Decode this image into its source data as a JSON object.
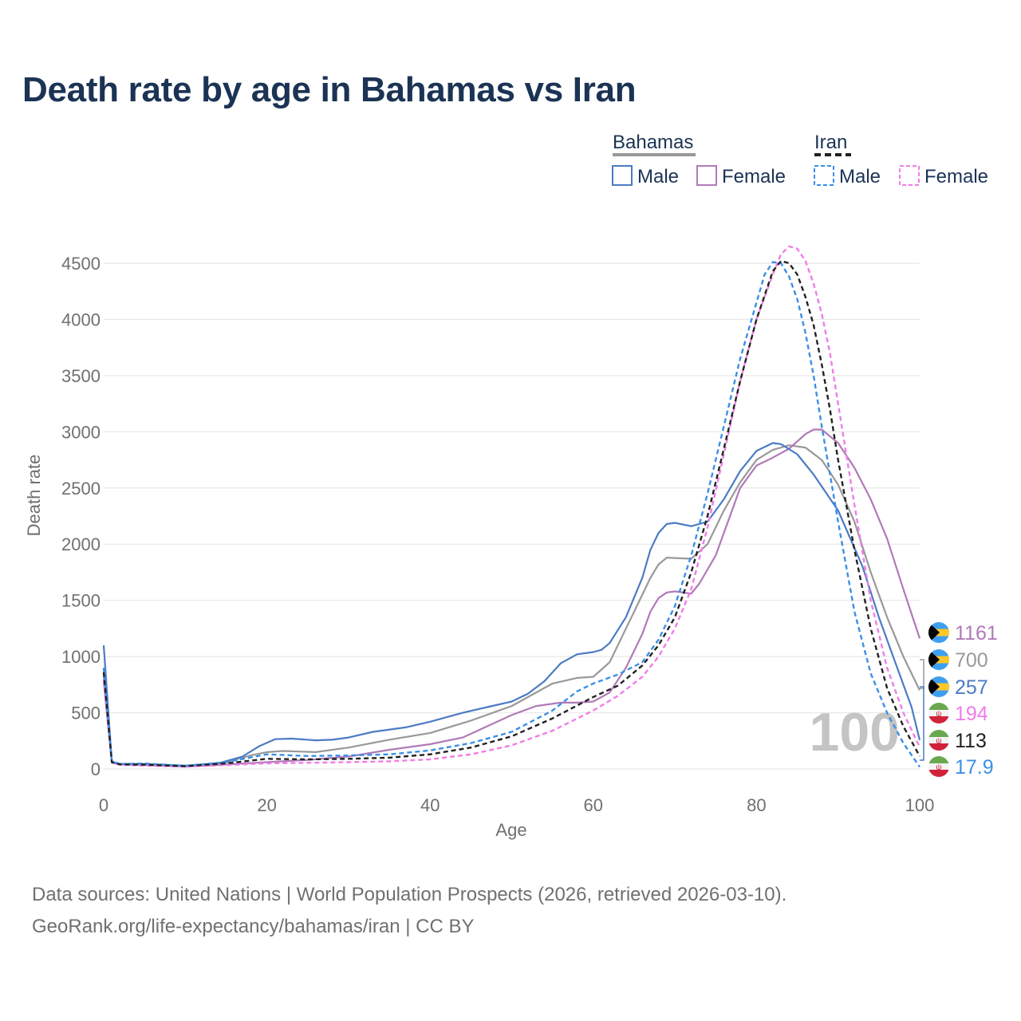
{
  "title": "Death rate by age in Bahamas vs Iran",
  "source_line1": "Data sources: United Nations | World Population Prospects (2026, retrieved 2026-03-10).",
  "source_line2": "GeoRank.org/life-expectancy/bahamas/iran | CC BY",
  "chart_data": {
    "type": "line",
    "title": "Death rate by age in Bahamas vs Iran",
    "xlabel": "Age",
    "ylabel": "Death rate",
    "xlim": [
      0,
      100
    ],
    "ylim": [
      0,
      4700
    ],
    "xticks": [
      0,
      20,
      40,
      60,
      80,
      100
    ],
    "yticks": [
      0,
      500,
      1000,
      1500,
      2000,
      2500,
      3000,
      3500,
      4000,
      4500
    ],
    "grid": true,
    "watermark_age": "100",
    "legend": {
      "groups": [
        {
          "country": "Bahamas",
          "line_style": "solid",
          "line_color": "#999999",
          "items": [
            "Male",
            "Female"
          ]
        },
        {
          "country": "Iran",
          "line_style": "dashed",
          "line_color": "#222222",
          "items": [
            "Male",
            "Female"
          ]
        }
      ]
    },
    "series": [
      {
        "name": "Bahamas Total",
        "country": "Bahamas",
        "color": "#999999",
        "dashed": false,
        "end_label": "700",
        "points": [
          [
            0,
            820
          ],
          [
            1,
            60
          ],
          [
            2,
            45
          ],
          [
            5,
            40
          ],
          [
            10,
            25
          ],
          [
            15,
            60
          ],
          [
            18,
            120
          ],
          [
            20,
            150
          ],
          [
            22,
            160
          ],
          [
            26,
            150
          ],
          [
            30,
            190
          ],
          [
            35,
            260
          ],
          [
            40,
            320
          ],
          [
            45,
            430
          ],
          [
            50,
            560
          ],
          [
            55,
            760
          ],
          [
            58,
            810
          ],
          [
            60,
            820
          ],
          [
            62,
            950
          ],
          [
            65,
            1400
          ],
          [
            67,
            1700
          ],
          [
            68,
            1820
          ],
          [
            69,
            1880
          ],
          [
            72,
            1870
          ],
          [
            74,
            2000
          ],
          [
            76,
            2300
          ],
          [
            78,
            2550
          ],
          [
            80,
            2750
          ],
          [
            82,
            2840
          ],
          [
            84,
            2880
          ],
          [
            86,
            2860
          ],
          [
            88,
            2750
          ],
          [
            90,
            2530
          ],
          [
            92,
            2200
          ],
          [
            94,
            1750
          ],
          [
            96,
            1350
          ],
          [
            98,
            1000
          ],
          [
            100,
            700
          ]
        ]
      },
      {
        "name": "Bahamas Male",
        "country": "Bahamas",
        "color": "#4c7bc4",
        "dashed": false,
        "end_label": "257",
        "points": [
          [
            0,
            1100
          ],
          [
            1,
            65
          ],
          [
            2,
            45
          ],
          [
            5,
            45
          ],
          [
            10,
            30
          ],
          [
            14,
            50
          ],
          [
            17,
            110
          ],
          [
            19,
            200
          ],
          [
            21,
            265
          ],
          [
            23,
            270
          ],
          [
            26,
            255
          ],
          [
            28,
            260
          ],
          [
            30,
            280
          ],
          [
            33,
            330
          ],
          [
            37,
            370
          ],
          [
            40,
            420
          ],
          [
            44,
            500
          ],
          [
            47,
            550
          ],
          [
            50,
            600
          ],
          [
            52,
            670
          ],
          [
            54,
            780
          ],
          [
            56,
            940
          ],
          [
            58,
            1020
          ],
          [
            60,
            1040
          ],
          [
            61,
            1060
          ],
          [
            62,
            1120
          ],
          [
            64,
            1350
          ],
          [
            66,
            1700
          ],
          [
            67,
            1950
          ],
          [
            68,
            2100
          ],
          [
            69,
            2180
          ],
          [
            70,
            2190
          ],
          [
            72,
            2160
          ],
          [
            74,
            2200
          ],
          [
            76,
            2400
          ],
          [
            78,
            2650
          ],
          [
            80,
            2830
          ],
          [
            82,
            2900
          ],
          [
            83,
            2890
          ],
          [
            85,
            2800
          ],
          [
            87,
            2620
          ],
          [
            90,
            2300
          ],
          [
            93,
            1800
          ],
          [
            95,
            1350
          ],
          [
            97,
            950
          ],
          [
            99,
            550
          ],
          [
            100,
            257
          ]
        ]
      },
      {
        "name": "Bahamas Female",
        "country": "Bahamas",
        "color": "#b07ab8",
        "dashed": false,
        "end_label": "1161",
        "points": [
          [
            0,
            780
          ],
          [
            1,
            55
          ],
          [
            2,
            40
          ],
          [
            5,
            35
          ],
          [
            10,
            20
          ],
          [
            15,
            40
          ],
          [
            20,
            60
          ],
          [
            25,
            80
          ],
          [
            30,
            110
          ],
          [
            35,
            170
          ],
          [
            40,
            220
          ],
          [
            44,
            280
          ],
          [
            47,
            380
          ],
          [
            50,
            480
          ],
          [
            53,
            560
          ],
          [
            56,
            590
          ],
          [
            58,
            590
          ],
          [
            60,
            600
          ],
          [
            62,
            680
          ],
          [
            64,
            900
          ],
          [
            66,
            1200
          ],
          [
            67,
            1400
          ],
          [
            68,
            1520
          ],
          [
            69,
            1570
          ],
          [
            70,
            1580
          ],
          [
            72,
            1560
          ],
          [
            73,
            1650
          ],
          [
            75,
            1900
          ],
          [
            77,
            2300
          ],
          [
            78,
            2500
          ],
          [
            80,
            2700
          ],
          [
            82,
            2770
          ],
          [
            84,
            2850
          ],
          [
            86,
            2980
          ],
          [
            87,
            3020
          ],
          [
            88,
            3020
          ],
          [
            90,
            2900
          ],
          [
            92,
            2680
          ],
          [
            94,
            2400
          ],
          [
            96,
            2050
          ],
          [
            98,
            1600
          ],
          [
            99,
            1380
          ],
          [
            100,
            1161
          ]
        ]
      },
      {
        "name": "Iran Total",
        "country": "Iran",
        "color": "#222222",
        "dashed": true,
        "end_label": "113",
        "points": [
          [
            0,
            860
          ],
          [
            1,
            60
          ],
          [
            2,
            40
          ],
          [
            5,
            38
          ],
          [
            10,
            25
          ],
          [
            15,
            50
          ],
          [
            20,
            90
          ],
          [
            25,
            85
          ],
          [
            30,
            90
          ],
          [
            35,
            100
          ],
          [
            40,
            130
          ],
          [
            45,
            190
          ],
          [
            50,
            290
          ],
          [
            55,
            450
          ],
          [
            60,
            640
          ],
          [
            63,
            740
          ],
          [
            66,
            920
          ],
          [
            68,
            1100
          ],
          [
            70,
            1350
          ],
          [
            72,
            1750
          ],
          [
            74,
            2250
          ],
          [
            76,
            2850
          ],
          [
            78,
            3450
          ],
          [
            80,
            4000
          ],
          [
            82,
            4430
          ],
          [
            83,
            4520
          ],
          [
            84,
            4500
          ],
          [
            85,
            4400
          ],
          [
            86,
            4200
          ],
          [
            87,
            3950
          ],
          [
            88,
            3600
          ],
          [
            89,
            3200
          ],
          [
            90,
            2750
          ],
          [
            92,
            1950
          ],
          [
            94,
            1250
          ],
          [
            96,
            720
          ],
          [
            98,
            380
          ],
          [
            100,
            113
          ]
        ]
      },
      {
        "name": "Iran Male",
        "country": "Iran",
        "color": "#3b8fe8",
        "dashed": true,
        "end_label": "17.9",
        "points": [
          [
            0,
            900
          ],
          [
            1,
            65
          ],
          [
            2,
            45
          ],
          [
            5,
            48
          ],
          [
            10,
            28
          ],
          [
            15,
            60
          ],
          [
            20,
            130
          ],
          [
            25,
            115
          ],
          [
            30,
            120
          ],
          [
            35,
            130
          ],
          [
            40,
            165
          ],
          [
            45,
            230
          ],
          [
            50,
            330
          ],
          [
            55,
            520
          ],
          [
            58,
            690
          ],
          [
            60,
            760
          ],
          [
            63,
            840
          ],
          [
            66,
            950
          ],
          [
            68,
            1150
          ],
          [
            70,
            1450
          ],
          [
            72,
            1900
          ],
          [
            74,
            2450
          ],
          [
            76,
            3050
          ],
          [
            78,
            3650
          ],
          [
            80,
            4150
          ],
          [
            81,
            4400
          ],
          [
            82,
            4510
          ],
          [
            83,
            4500
          ],
          [
            84,
            4380
          ],
          [
            85,
            4180
          ],
          [
            86,
            3880
          ],
          [
            87,
            3500
          ],
          [
            88,
            3050
          ],
          [
            90,
            2200
          ],
          [
            92,
            1400
          ],
          [
            94,
            850
          ],
          [
            96,
            500
          ],
          [
            98,
            230
          ],
          [
            100,
            17.9
          ]
        ]
      },
      {
        "name": "Iran Female",
        "country": "Iran",
        "color": "#f07de6",
        "dashed": true,
        "end_label": "194",
        "points": [
          [
            0,
            800
          ],
          [
            1,
            55
          ],
          [
            2,
            38
          ],
          [
            5,
            30
          ],
          [
            10,
            20
          ],
          [
            15,
            35
          ],
          [
            20,
            50
          ],
          [
            25,
            55
          ],
          [
            30,
            60
          ],
          [
            35,
            68
          ],
          [
            40,
            85
          ],
          [
            45,
            130
          ],
          [
            50,
            210
          ],
          [
            55,
            340
          ],
          [
            60,
            520
          ],
          [
            63,
            650
          ],
          [
            66,
            820
          ],
          [
            68,
            1000
          ],
          [
            70,
            1250
          ],
          [
            72,
            1600
          ],
          [
            74,
            2150
          ],
          [
            76,
            2800
          ],
          [
            78,
            3450
          ],
          [
            80,
            4000
          ],
          [
            82,
            4400
          ],
          [
            83,
            4580
          ],
          [
            84,
            4650
          ],
          [
            85,
            4630
          ],
          [
            86,
            4520
          ],
          [
            87,
            4320
          ],
          [
            88,
            4050
          ],
          [
            89,
            3700
          ],
          [
            90,
            3250
          ],
          [
            92,
            2350
          ],
          [
            94,
            1500
          ],
          [
            96,
            900
          ],
          [
            98,
            500
          ],
          [
            100,
            194
          ]
        ]
      }
    ]
  },
  "colors": {
    "title": "#1b3354",
    "axis_text": "#707070",
    "grid": "#e8e8e8",
    "watermark": "#c4c4c4",
    "legend_text": "#1b3354",
    "iran_flag_green": "#6aa84f",
    "iran_flag_red": "#d0233a",
    "bahamas_blue": "#3e9ff0",
    "bahamas_gold": "#ffc729"
  }
}
